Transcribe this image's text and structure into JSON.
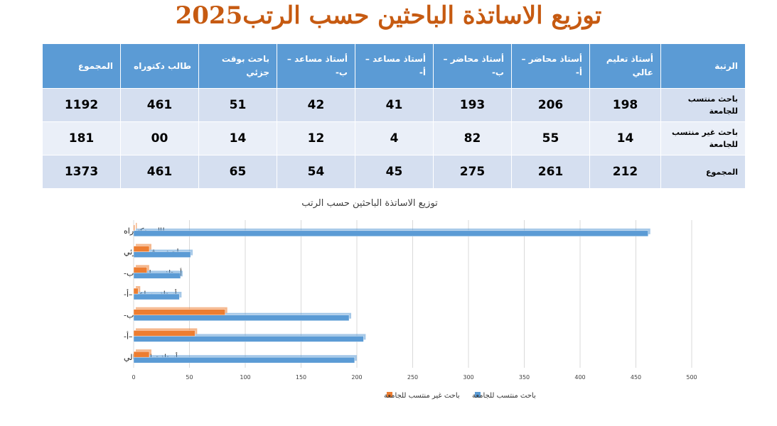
{
  "title": "توزيع الاساتذة الباحثين حسب الرتب2025",
  "table": {
    "headers": [
      "الرتبة",
      "أستاذ تعليم عالي",
      "أستاذ محاضر –أ-",
      "أستاذ محاضر –ب-",
      "أستاذ مساعد –أ-",
      "أستاذ مساعد –ب-",
      "باحث بوقت جزئي",
      "طالب دكتوراه",
      "المجموع"
    ],
    "rows": [
      {
        "label": "باحث منتسب للجامعة",
        "values": [
          "198",
          "206",
          "193",
          "41",
          "42",
          "51",
          "461",
          "1192"
        ]
      },
      {
        "label": "باحث غير منتسب للجامعة",
        "values": [
          "14",
          "55",
          "82",
          "4",
          "12",
          "14",
          "00",
          "181"
        ]
      },
      {
        "label": "المجموع",
        "values": [
          "212",
          "261",
          "275",
          "45",
          "54",
          "65",
          "461",
          "1373"
        ]
      }
    ]
  },
  "colors": {
    "header_bg": "#5b9bd5",
    "title": "#c65a11",
    "series_1": "#5b9bd5",
    "series_2": "#ed7d31"
  },
  "chart_data": {
    "type": "bar",
    "orientation": "horizontal",
    "title": "توزيع الاساتذة الباحثين حسب الرتب",
    "categories": [
      "أستاذ تعليم عالي",
      "أستاذ محاضر –أ-",
      "أستاذ محاضر –ب-",
      "أستاذ مساعد –أ-",
      "أستاذ مساعد –ب-",
      "باحث بوقت جزئي",
      "طالب دكتوراه"
    ],
    "series": [
      {
        "name": "باحث منتسب للجامعة",
        "color": "#5b9bd5",
        "values": [
          198,
          206,
          193,
          41,
          42,
          51,
          461
        ]
      },
      {
        "name": "باحث غير منتسب للجامعة",
        "color": "#ed7d31",
        "values": [
          14,
          55,
          82,
          4,
          12,
          14,
          0
        ]
      }
    ],
    "xlim": [
      0,
      500
    ],
    "xticks": [
      0,
      50,
      100,
      150,
      200,
      250,
      300,
      350,
      400,
      450,
      500
    ],
    "grid": true,
    "legend": "bottom"
  }
}
